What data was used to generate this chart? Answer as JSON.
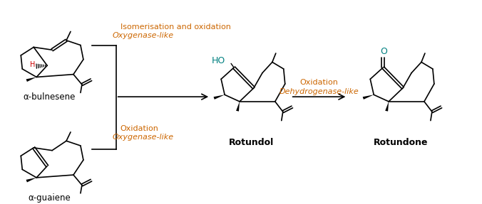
{
  "background_color": "#ffffff",
  "molecule_line_color": "#000000",
  "text_color_reaction": "#cc6600",
  "alpha_bulnesene_label": "α-bulnesene",
  "alpha_guaiene_label": "α-guaiene",
  "rotundol_label": "Rotundol",
  "rotundone_label": "Rotundone",
  "reaction1_line1": "Isomerisation and oxidation",
  "reaction1_line2": "Oxygenase-like",
  "reaction2_line1": "Oxidation",
  "reaction2_line2": "Oxygenase-like",
  "reaction3_line1": "Oxidation",
  "reaction3_line2": "Dehydrogenase-like",
  "ho_label": "HO",
  "o_label": "O",
  "h_label": "H"
}
